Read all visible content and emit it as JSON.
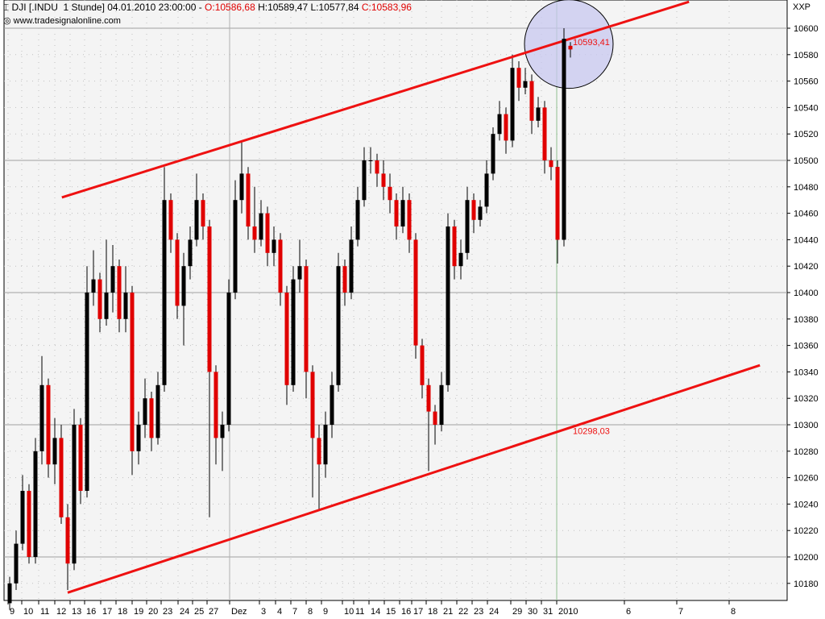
{
  "header": {
    "symbol": "DJI [.INDU  1 Stunde] 04.01.2010 23:00:00 - ",
    "open": "O:10586,68",
    "high": " H:10589,47",
    "low": " L:10577,84",
    "close": " C:10583,96",
    "source": "www.tradesignalonline.com",
    "corner": "XXP"
  },
  "colors": {
    "up": "#000000",
    "down": "#e00000",
    "channel": "#ee1111",
    "circle_fill": "#c8c8f0",
    "grid": "#c0c0c0",
    "year_line": "#90c090",
    "background": "#f4f4f4"
  },
  "chart_data": {
    "type": "candlestick",
    "title": "DJI [.INDU  1 Stunde]",
    "ylim": [
      10170,
      10621
    ],
    "y_ticks": [
      10180,
      10200,
      10220,
      10240,
      10260,
      10280,
      10300,
      10320,
      10340,
      10360,
      10380,
      10400,
      10420,
      10440,
      10460,
      10480,
      10500,
      10520,
      10540,
      10560,
      10580,
      10600
    ],
    "x_tick_labels": [
      "9",
      "10",
      "11",
      "12",
      "13",
      "16",
      "17",
      "18",
      "19",
      "20",
      "23",
      "24",
      "25",
      "27",
      "Dez",
      "3",
      "4",
      "7",
      "8",
      "9",
      "10",
      "11",
      "14",
      "15",
      "16",
      "17",
      "18",
      "21",
      "22",
      "23",
      "24",
      "29",
      "30",
      "31",
      "2010",
      "6",
      "7",
      "8"
    ],
    "grid": true,
    "candles": [
      [
        10165,
        10185,
        10160,
        10180
      ],
      [
        10180,
        10220,
        10175,
        10210
      ],
      [
        10210,
        10262,
        10205,
        10250
      ],
      [
        10250,
        10255,
        10195,
        10200
      ],
      [
        10200,
        10290,
        10195,
        10280
      ],
      [
        10280,
        10352,
        10270,
        10330
      ],
      [
        10330,
        10335,
        10260,
        10270
      ],
      [
        10270,
        10305,
        10255,
        10290
      ],
      [
        10290,
        10300,
        10225,
        10230
      ],
      [
        10230,
        10240,
        10175,
        10195
      ],
      [
        10195,
        10312,
        10190,
        10300
      ],
      [
        10300,
        10305,
        10240,
        10250
      ],
      [
        10250,
        10420,
        10245,
        10400
      ],
      [
        10400,
        10432,
        10390,
        10410
      ],
      [
        10410,
        10415,
        10370,
        10380
      ],
      [
        10380,
        10440,
        10375,
        10400
      ],
      [
        10400,
        10436,
        10385,
        10420
      ],
      [
        10420,
        10425,
        10370,
        10380
      ],
      [
        10380,
        10420,
        10370,
        10400
      ],
      [
        10400,
        10405,
        10262,
        10280
      ],
      [
        10280,
        10310,
        10270,
        10300
      ],
      [
        10300,
        10335,
        10290,
        10320
      ],
      [
        10320,
        10325,
        10280,
        10290
      ],
      [
        10290,
        10340,
        10285,
        10330
      ],
      [
        10330,
        10495,
        10325,
        10470
      ],
      [
        10470,
        10475,
        10430,
        10440
      ],
      [
        10440,
        10445,
        10380,
        10390
      ],
      [
        10390,
        10430,
        10360,
        10420
      ],
      [
        10420,
        10450,
        10410,
        10440
      ],
      [
        10440,
        10490,
        10435,
        10470
      ],
      [
        10470,
        10475,
        10440,
        10450
      ],
      [
        10450,
        10455,
        10230,
        10340
      ],
      [
        10340,
        10345,
        10270,
        10290
      ],
      [
        10290,
        10310,
        10265,
        10300
      ],
      [
        10300,
        10410,
        10295,
        10400
      ],
      [
        10400,
        10485,
        10395,
        10470
      ],
      [
        10470,
        10515,
        10460,
        10490
      ],
      [
        10490,
        10495,
        10440,
        10450
      ],
      [
        10450,
        10480,
        10430,
        10440
      ],
      [
        10440,
        10470,
        10435,
        10460
      ],
      [
        10460,
        10465,
        10420,
        10430
      ],
      [
        10430,
        10450,
        10420,
        10440
      ],
      [
        10440,
        10445,
        10390,
        10400
      ],
      [
        10400,
        10405,
        10315,
        10330
      ],
      [
        10330,
        10420,
        10325,
        10410
      ],
      [
        10410,
        10440,
        10400,
        10420
      ],
      [
        10420,
        10425,
        10320,
        10340
      ],
      [
        10340,
        10345,
        10245,
        10290
      ],
      [
        10290,
        10300,
        10235,
        10270
      ],
      [
        10270,
        10310,
        10260,
        10300
      ],
      [
        10300,
        10340,
        10290,
        10330
      ],
      [
        10330,
        10430,
        10325,
        10420
      ],
      [
        10420,
        10425,
        10390,
        10400
      ],
      [
        10400,
        10450,
        10395,
        10440
      ],
      [
        10440,
        10480,
        10435,
        10470
      ],
      [
        10470,
        10510,
        10465,
        10500
      ],
      [
        10500,
        10510,
        10490,
        10500
      ],
      [
        10500,
        10505,
        10480,
        10490
      ],
      [
        10490,
        10500,
        10470,
        10480
      ],
      [
        10480,
        10490,
        10460,
        10470
      ],
      [
        10470,
        10475,
        10440,
        10450
      ],
      [
        10450,
        10480,
        10445,
        10470
      ],
      [
        10470,
        10475,
        10430,
        10440
      ],
      [
        10440,
        10445,
        10350,
        10360
      ],
      [
        10360,
        10365,
        10320,
        10330
      ],
      [
        10330,
        10335,
        10265,
        10310
      ],
      [
        10310,
        10315,
        10285,
        10300
      ],
      [
        10300,
        10340,
        10295,
        10330
      ],
      [
        10330,
        10460,
        10325,
        10450
      ],
      [
        10450,
        10455,
        10410,
        10420
      ],
      [
        10420,
        10440,
        10410,
        10430
      ],
      [
        10430,
        10480,
        10425,
        10470
      ],
      [
        10470,
        10475,
        10445,
        10455
      ],
      [
        10455,
        10470,
        10450,
        10465
      ],
      [
        10465,
        10500,
        10460,
        10490
      ],
      [
        10490,
        10525,
        10485,
        10520
      ],
      [
        10520,
        10545,
        10515,
        10535
      ],
      [
        10535,
        10540,
        10505,
        10515
      ],
      [
        10515,
        10580,
        10510,
        10570
      ],
      [
        10570,
        10575,
        10545,
        10555
      ],
      [
        10555,
        10570,
        10550,
        10560
      ],
      [
        10560,
        10565,
        10520,
        10530
      ],
      [
        10530,
        10548,
        10525,
        10540
      ],
      [
        10540,
        10545,
        10490,
        10500
      ],
      [
        10500,
        10510,
        10485,
        10495
      ],
      [
        10495,
        10500,
        10422,
        10440
      ],
      [
        10440,
        10600,
        10435,
        10592
      ],
      [
        10586.68,
        10589.47,
        10577.84,
        10583.96
      ]
    ],
    "channel_lines": [
      {
        "from_candle": 8.1,
        "from_price": 10472,
        "to_candle": 105.4,
        "to_price": 10620,
        "label": "10593,41"
      },
      {
        "from_candle": 9,
        "from_price": 10173,
        "to_candle": 116.4,
        "to_price": 10345,
        "label": "10298,03"
      }
    ],
    "highlight_circle": {
      "center_price": 10588
    }
  }
}
